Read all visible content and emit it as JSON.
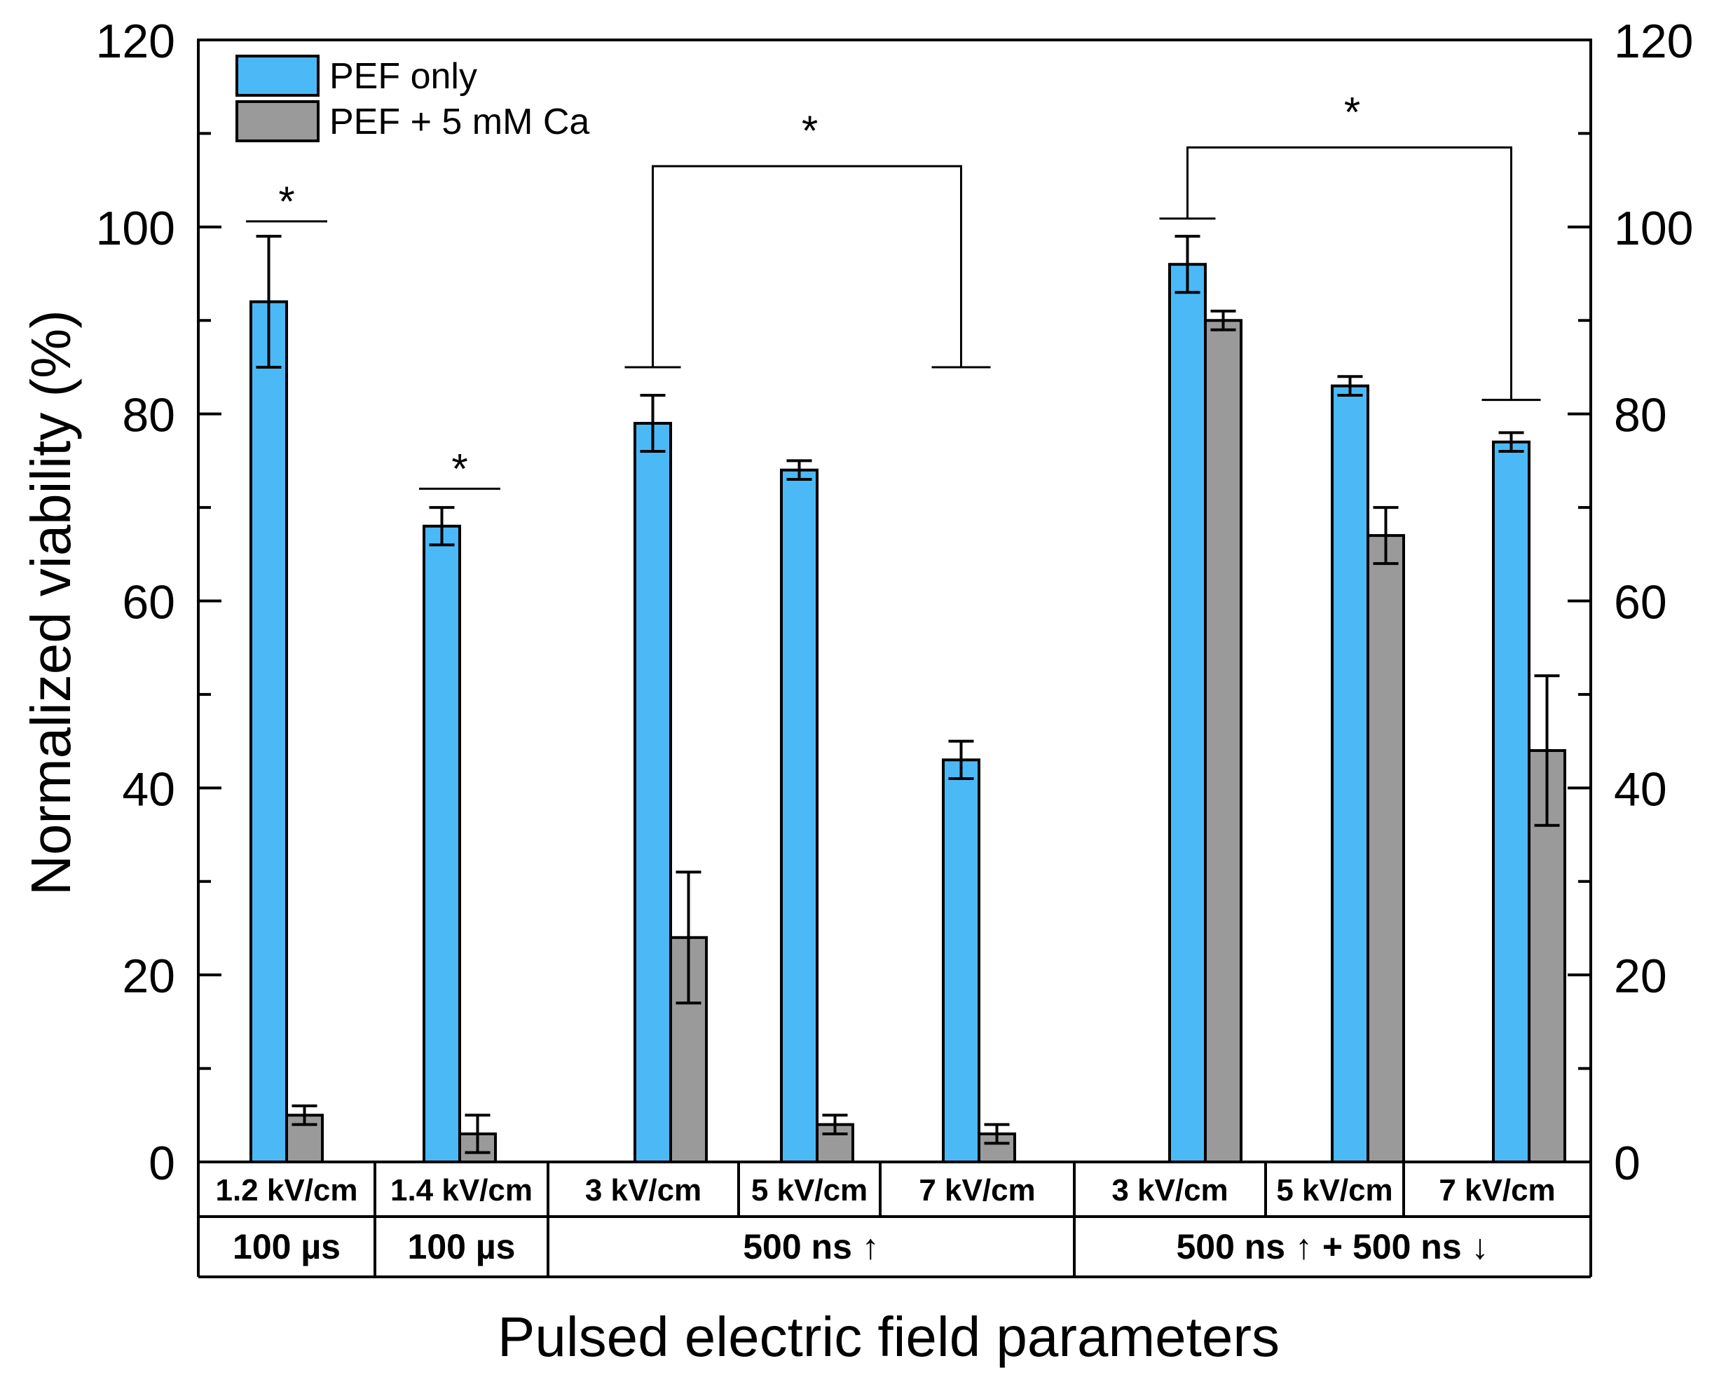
{
  "chart_data": {
    "type": "bar",
    "title": "",
    "xlabel": "Pulsed electric field parameters",
    "ylabel": "Normalized viability (%)",
    "ylim": [
      0,
      120
    ],
    "yticks": [
      0,
      20,
      40,
      60,
      80,
      100,
      120
    ],
    "right_axis_ticks": [
      0,
      20,
      40,
      60,
      80,
      100,
      120
    ],
    "legend_position": "top-left",
    "colors": {
      "pef_only": "#4cb9f7",
      "pef_ca": "#9a9a9a",
      "axis": "#000000"
    },
    "categories": [
      "1.2 kV/cm",
      "1.4 kV/cm",
      "3 kV/cm",
      "5 kV/cm",
      "7 kV/cm",
      "3 kV/cm",
      "5 kV/cm",
      "7 kV/cm"
    ],
    "groups": [
      "100 µs",
      "100 µs",
      "500 ns ↑",
      "500 ns ↑ + 500 ns ↓"
    ],
    "series": [
      {
        "name": "PEF only",
        "values": [
          92,
          68,
          79,
          74,
          43,
          96,
          83,
          77
        ],
        "errors": [
          7,
          2,
          3,
          1,
          2,
          3,
          1,
          1
        ]
      },
      {
        "name": "PEF + 5 mM Ca",
        "values": [
          5,
          3,
          24,
          4,
          3,
          90,
          67,
          44
        ],
        "errors": [
          1,
          2,
          7,
          1,
          1,
          1,
          3,
          8
        ]
      }
    ],
    "annotations": [
      {
        "text": "*",
        "type": "pair",
        "category": 0,
        "y": 100.6
      },
      {
        "text": "*",
        "type": "pair",
        "category": 1,
        "y": 72
      },
      {
        "text": "*",
        "type": "bracket",
        "from_category": 2,
        "to_category": 4,
        "y_top": 106.5,
        "y_foot": 85
      },
      {
        "text": "*",
        "type": "bracket",
        "from_category": 5,
        "to_category": 7,
        "y_top": 108.5,
        "y_foot_left": 100.9,
        "y_foot_right": 81.5
      }
    ]
  }
}
